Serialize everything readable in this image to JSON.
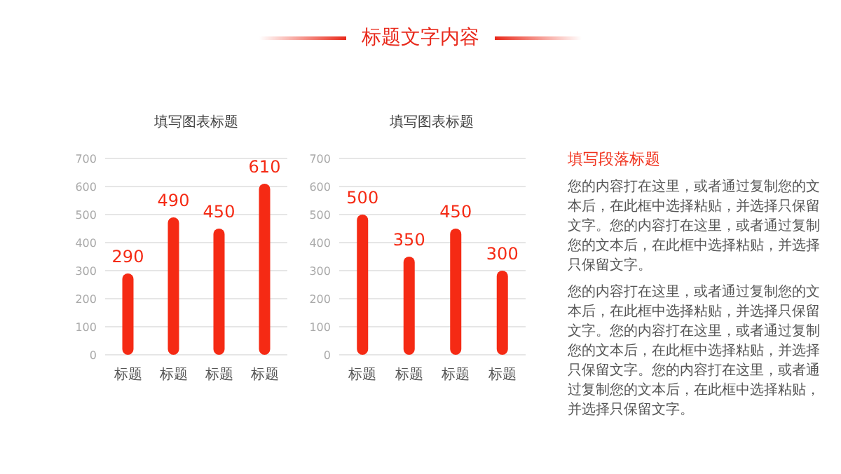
{
  "chart_data": [
    {
      "type": "other",
      "title": "标题文字内容"
    },
    {
      "type": "bar",
      "title": "填写图表标题",
      "categories": [
        "标题",
        "标题",
        "标题",
        "标题"
      ],
      "values": [
        290,
        490,
        450,
        610
      ],
      "color": "#f52a14",
      "ylim": [
        0,
        700
      ],
      "yticks": [
        0,
        100,
        200,
        300,
        400,
        500,
        600,
        700
      ],
      "grid": "y",
      "data_labels": true
    },
    {
      "type": "bar",
      "title": "填写图表标题",
      "categories": [
        "标题",
        "标题",
        "标题",
        "标题"
      ],
      "values": [
        500,
        350,
        450,
        300
      ],
      "color": "#f52a14",
      "ylim": [
        0,
        700
      ],
      "yticks": [
        0,
        100,
        200,
        300,
        400,
        500,
        600,
        700
      ],
      "grid": "y",
      "data_labels": true
    },
    {
      "type": "other",
      "title": "填写段落标题",
      "annotations": [
        "您的内容打在这里，或者通过复制您的文本后，在此框中选择粘贴，并选择只保留文字。您的内容打在这里，或者通过复制您的文本后，在此框中选择粘贴，并选择只保留文字。",
        "您的内容打在这里，或者通过复制您的文本后，在此框中选择粘贴，并选择只保留文字。您的内容打在这里，或者通过复制您的文本后，在此框中选择粘贴，并选择只保留文字。您的内容打在这里，或者通过复制您的文本后，在此框中选择粘贴，并选择只保留文字。"
      ]
    }
  ]
}
